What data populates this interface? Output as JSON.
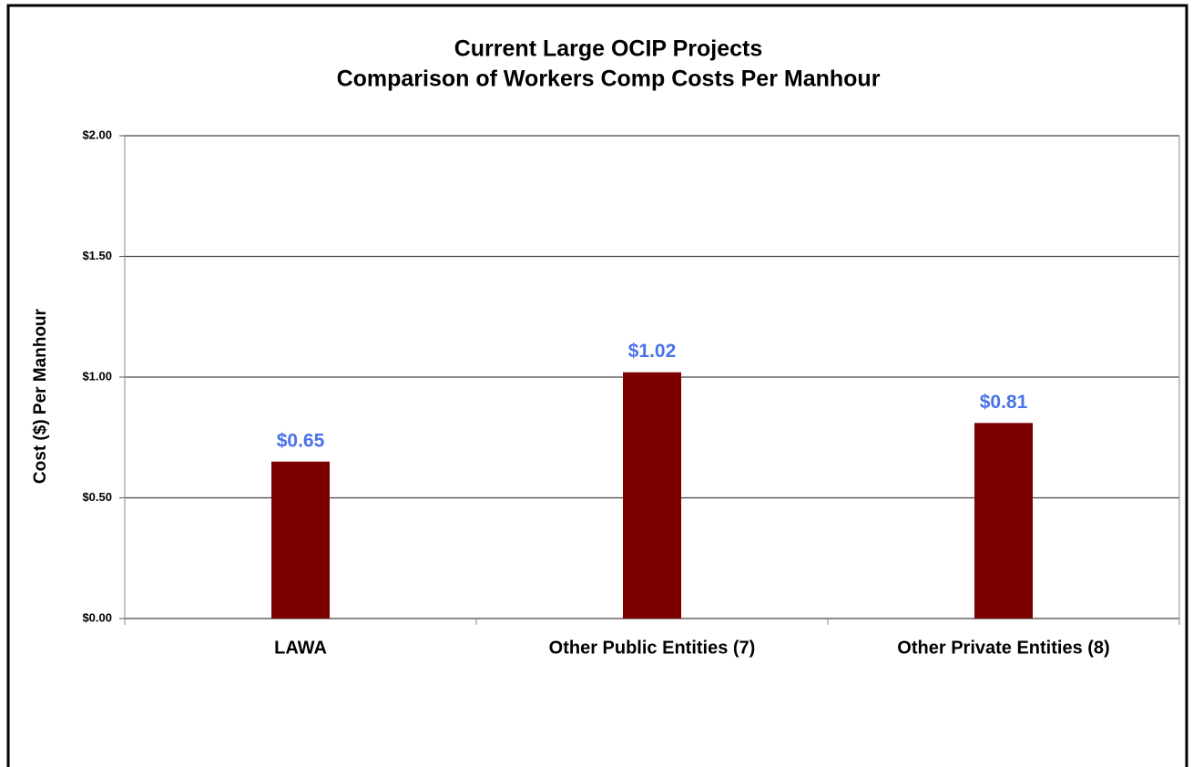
{
  "chart_data": {
    "type": "bar",
    "title": [
      "Current Large OCIP Projects",
      "Comparison of Workers Comp Costs Per Manhour"
    ],
    "y_label": "Cost ($) Per Manhour",
    "categories": [
      "LAWA",
      "Other Public Entities (7)",
      "Other Private Entities (8)"
    ],
    "values": [
      0.65,
      1.02,
      0.81
    ],
    "value_labels": [
      "$0.65",
      "$1.02",
      "$0.81"
    ],
    "color": "#7b0000",
    "value_label_color": "#4a72e8",
    "ylim": [
      0,
      2
    ],
    "yticks": [
      {
        "value": 0,
        "label": "$0.00"
      },
      {
        "value": 0.5,
        "label": "$0.50"
      },
      {
        "value": 1,
        "label": "$1.00"
      },
      {
        "value": 1.5,
        "label": "$1.50"
      },
      {
        "value": 2,
        "label": "$2.00"
      }
    ],
    "grid": true
  }
}
